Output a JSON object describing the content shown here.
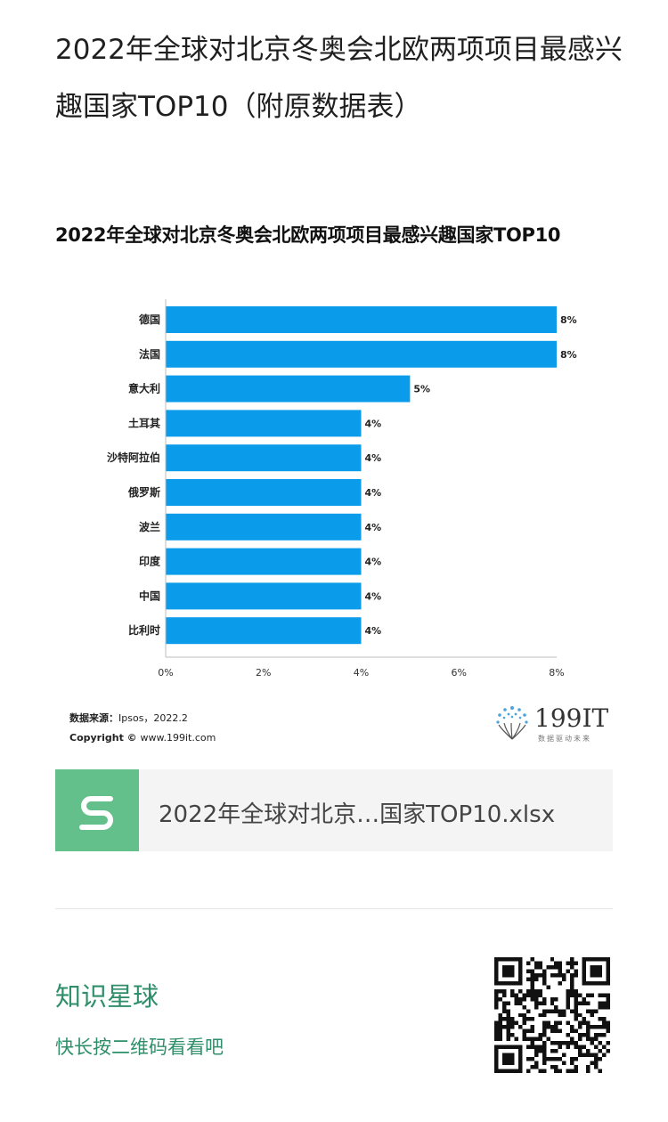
{
  "article": {
    "title": "2022年全球对北京冬奥会北欧两项项目最感兴趣国家TOP10（附原数据表）"
  },
  "chart": {
    "title": "2022年全球对北京冬奥会北欧两项项目最感兴趣国家TOP10",
    "source_label": "数据来源：",
    "source_value": "Ipsos，2022.2",
    "copyright_label": "Copyright ©",
    "copyright_value": "www.199it.com",
    "bar_color": "#0a9cea"
  },
  "chart_data": {
    "type": "bar",
    "orientation": "horizontal",
    "title": "2022年全球对北京冬奥会北欧两项项目最感兴趣国家TOP10",
    "categories": [
      "德国",
      "法国",
      "意大利",
      "土耳其",
      "沙特阿拉伯",
      "俄罗斯",
      "波兰",
      "印度",
      "中国",
      "比利时"
    ],
    "values": [
      8,
      8,
      5,
      4,
      4,
      4,
      4,
      4,
      4,
      4
    ],
    "value_labels": [
      "8%",
      "8%",
      "5%",
      "4%",
      "4%",
      "4%",
      "4%",
      "4%",
      "4%",
      "4%"
    ],
    "xlim": [
      0,
      8
    ],
    "xticks": [
      "0%",
      "2%",
      "4%",
      "6%",
      "8%"
    ],
    "grid": false
  },
  "logo": {
    "brand": "199IT",
    "slogan": "数据驱动未来"
  },
  "attachment": {
    "file_name": "2022年全球对北京…国家TOP10.xlsx",
    "icon": "spreadsheet-s-icon",
    "icon_color": "#64c08a"
  },
  "promo": {
    "title": "知识星球",
    "subtitle": "快长按二维码看看吧",
    "accent": "#2f8f6a",
    "qr_icon": "qr-code-icon"
  }
}
